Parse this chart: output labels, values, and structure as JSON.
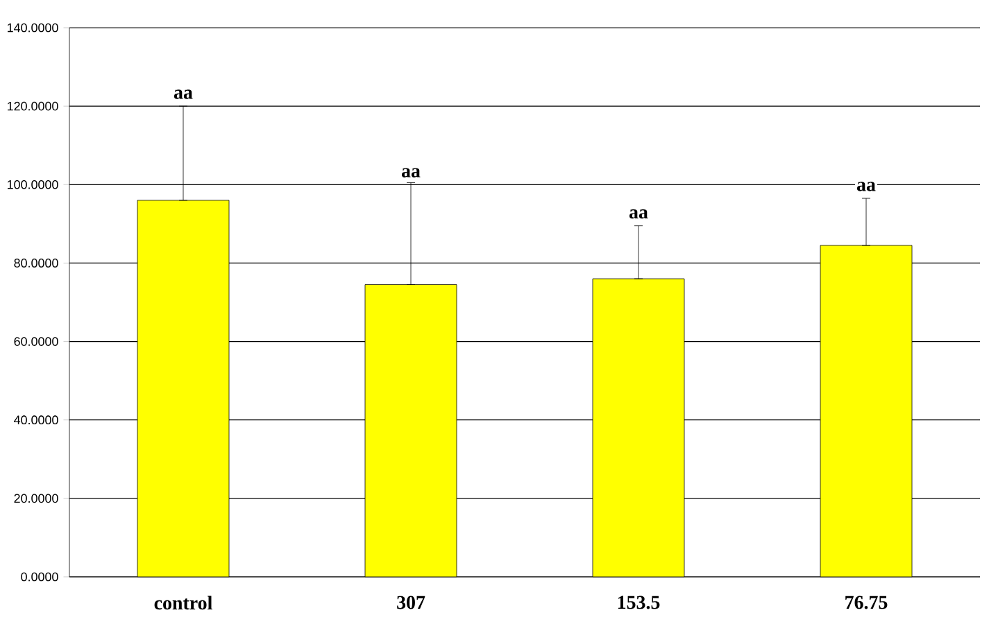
{
  "chart_data": {
    "type": "bar",
    "categories": [
      "control",
      "307",
      "153.5",
      "76.75"
    ],
    "values": [
      96,
      74.5,
      76,
      84.5
    ],
    "errors": [
      [
        96,
        120
      ],
      [
        74.5,
        100.5
      ],
      [
        76,
        89.5
      ],
      [
        84.5,
        96.5
      ]
    ],
    "color": "#ffff00",
    "ylim": [
      0,
      140
    ],
    "yticks": [
      {
        "value": 0,
        "label": "0.0000"
      },
      {
        "value": 20,
        "label": "20.0000"
      },
      {
        "value": 40,
        "label": "40.0000"
      },
      {
        "value": 60,
        "label": "60.0000"
      },
      {
        "value": 80,
        "label": "80.0000"
      },
      {
        "value": 100,
        "label": "100.0000"
      },
      {
        "value": 120,
        "label": "120.0000"
      },
      {
        "value": 140,
        "label": "140.0000"
      }
    ],
    "grid": "y",
    "annotations": [
      {
        "text": "aa",
        "x": "control",
        "y": 120
      },
      {
        "text": "aa",
        "x": "307",
        "y": 100
      },
      {
        "text": "aa",
        "x": "153.5",
        "y": 89.5
      },
      {
        "text": "aa",
        "x": "76.75",
        "y": 96.5
      }
    ]
  }
}
